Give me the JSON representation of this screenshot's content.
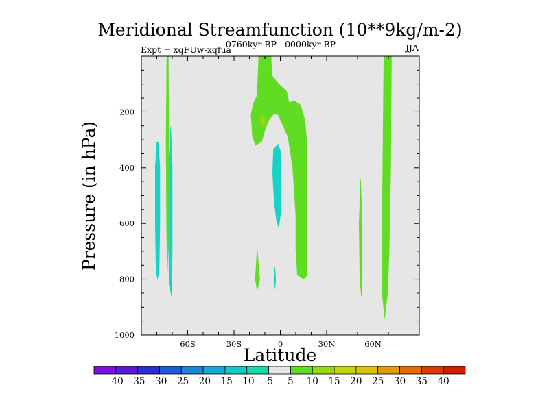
{
  "chart_data": {
    "type": "contour-filled",
    "title": "Meridional Streamfunction (10**9kg/m-2)",
    "left_label": "Expt = xqFUw-xqfua",
    "center_label": "0760kyr BP - 0000kyr BP",
    "right_label": "JJA",
    "xlabel": "Latitude",
    "ylabel": "Pressure (in hPa)",
    "x_ticks": [
      {
        "value": -60,
        "label": "60S"
      },
      {
        "value": -30,
        "label": "30S"
      },
      {
        "value": 0,
        "label": "0"
      },
      {
        "value": 30,
        "label": "30N"
      },
      {
        "value": 60,
        "label": "60N"
      }
    ],
    "xlim": [
      -90,
      90
    ],
    "y_ticks": [
      {
        "value": 200,
        "label": "200"
      },
      {
        "value": 400,
        "label": "400"
      },
      {
        "value": 600,
        "label": "600"
      },
      {
        "value": 800,
        "label": "800"
      },
      {
        "value": 1000,
        "label": "1000"
      }
    ],
    "ylim": [
      0,
      1000
    ],
    "background_color": "#e6e6e6",
    "colorbar": {
      "labels": [
        "-40",
        "-35",
        "-30",
        "-25",
        "-20",
        "-15",
        "-10",
        "-5",
        "5",
        "10",
        "15",
        "20",
        "25",
        "30",
        "35",
        "40"
      ],
      "colors": [
        "#7d10de",
        "#5c1ad6",
        "#2c2fcf",
        "#1a5ad4",
        "#1b86d6",
        "#17a8d4",
        "#14c7c8",
        "#19d9a8",
        "#e6e6e6",
        "#60dc22",
        "#93d916",
        "#c3d60f",
        "#dfc20a",
        "#e19b08",
        "#e06b07",
        "#dc3a05",
        "#d31a02"
      ]
    },
    "regions": [
      {
        "name": "cyan-strip-70s",
        "level": "-10",
        "color": "#17d3c6",
        "points": [
          [
            -79,
            310
          ],
          [
            -78,
            400
          ],
          [
            -78,
            600
          ],
          [
            -78.5,
            770
          ],
          [
            -79.5,
            800
          ],
          [
            -80.5,
            770
          ],
          [
            -81,
            600
          ],
          [
            -81,
            400
          ],
          [
            -80,
            310
          ]
        ]
      },
      {
        "name": "cyan-strip-65s",
        "level": "-10",
        "color": "#17d3c6",
        "points": [
          [
            -71,
            250
          ],
          [
            -70,
            400
          ],
          [
            -70,
            700
          ],
          [
            -70.5,
            860
          ],
          [
            -72,
            820
          ],
          [
            -72.5,
            600
          ],
          [
            -72.5,
            400
          ]
        ]
      },
      {
        "name": "cyan-tongue-eq",
        "level": "-10",
        "color": "#17d3c6",
        "points": [
          [
            -4.5,
            335
          ],
          [
            -1.5,
            315
          ],
          [
            0.5,
            345
          ],
          [
            0.5,
            550
          ],
          [
            -1,
            615
          ],
          [
            -2.5,
            590
          ],
          [
            -4,
            520
          ],
          [
            -5,
            420
          ]
        ]
      },
      {
        "name": "cyan-blip-eq",
        "level": "-10",
        "color": "#17d3c6",
        "points": [
          [
            -3.5,
            755
          ],
          [
            -3,
            800
          ],
          [
            -3.5,
            835
          ],
          [
            -4.2,
            800
          ]
        ]
      },
      {
        "name": "green-strip-68s",
        "level": "5",
        "color": "#60dc22",
        "points": [
          [
            -73.5,
            0
          ],
          [
            -72.5,
            0
          ],
          [
            -72.3,
            300
          ],
          [
            -72.6,
            690
          ],
          [
            -73.2,
            780
          ],
          [
            -73.7,
            600
          ],
          [
            -74,
            300
          ]
        ]
      },
      {
        "name": "green-cell-15s",
        "level": "5",
        "color": "#60dc22",
        "points": [
          [
            -14,
            0
          ],
          [
            -6,
            0
          ],
          [
            -5.5,
            70
          ],
          [
            -1,
            100
          ],
          [
            4,
            125
          ],
          [
            6,
            175
          ],
          [
            0,
            215
          ],
          [
            -4,
            205
          ],
          [
            -7.5,
            230
          ],
          [
            -10,
            265
          ],
          [
            -12,
            305
          ],
          [
            -16,
            320
          ],
          [
            -18,
            290
          ],
          [
            -19,
            210
          ],
          [
            -17.5,
            170
          ],
          [
            -15,
            140
          ]
        ]
      },
      {
        "name": "green-band-10n",
        "level": "5",
        "color": "#60dc22",
        "points": [
          [
            4,
            170
          ],
          [
            9,
            160
          ],
          [
            13,
            175
          ],
          [
            16,
            230
          ],
          [
            17,
            300
          ],
          [
            17,
            790
          ],
          [
            15,
            800
          ],
          [
            11,
            785
          ],
          [
            10,
            690
          ],
          [
            10,
            570
          ],
          [
            8,
            400
          ],
          [
            5,
            290
          ],
          [
            1,
            240
          ],
          [
            -1,
            215
          ]
        ]
      },
      {
        "name": "green-blip-15s",
        "level": "5",
        "color": "#60dc22",
        "points": [
          [
            -15,
            690
          ],
          [
            -13.3,
            800
          ],
          [
            -15,
            840
          ],
          [
            -16.2,
            800
          ]
        ]
      },
      {
        "name": "green-strip-52n",
        "level": "5",
        "color": "#60dc22",
        "points": [
          [
            52,
            440
          ],
          [
            53,
            600
          ],
          [
            53,
            800
          ],
          [
            52.5,
            860
          ],
          [
            51.5,
            800
          ],
          [
            51,
            600
          ]
        ]
      },
      {
        "name": "green-strip-70n",
        "level": "5",
        "color": "#60dc22",
        "points": [
          [
            67,
            0
          ],
          [
            72,
            0
          ],
          [
            71.5,
            400
          ],
          [
            70.5,
            700
          ],
          [
            69.5,
            850
          ],
          [
            67.5,
            940
          ],
          [
            66,
            850
          ],
          [
            66,
            600
          ],
          [
            66.5,
            300
          ]
        ]
      },
      {
        "name": "yellowgreen-spot",
        "level": "10",
        "color": "#93d916",
        "points": [
          [
            -11.5,
            215
          ],
          [
            -10,
            222
          ],
          [
            -10,
            245
          ],
          [
            -11.5,
            252
          ],
          [
            -13,
            240
          ],
          [
            -13,
            222
          ]
        ]
      }
    ]
  }
}
